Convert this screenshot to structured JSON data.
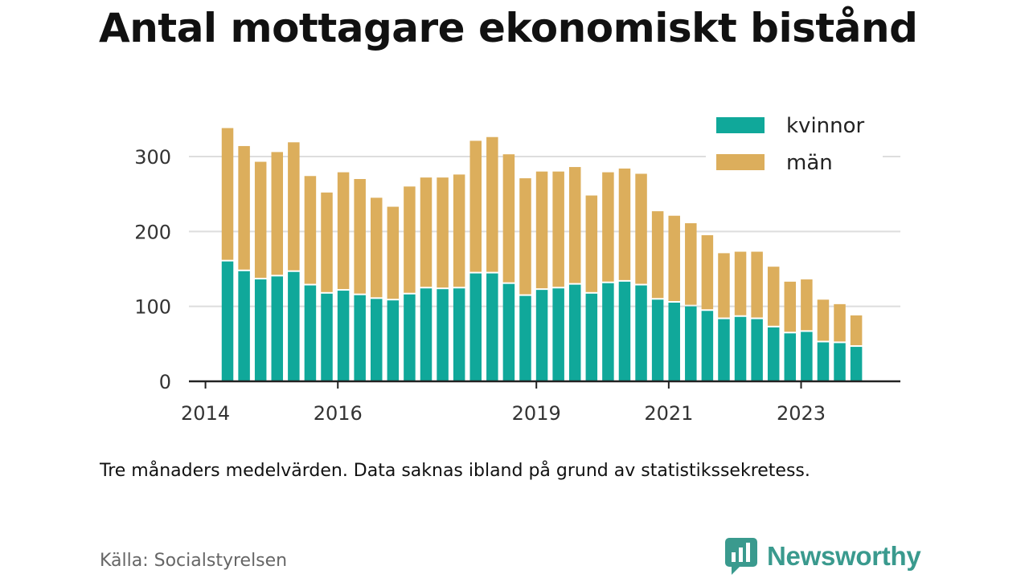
{
  "header": {
    "title": "Antal mottagare ekonomiskt bistånd"
  },
  "footer": {
    "caption": "Tre månaders medelvärden. Data saknas ibland på grund av statistikssekretess.",
    "source": "Källa: Socialstyrelsen",
    "brand": "Newsworthy"
  },
  "colors": {
    "kvinnor": "#10a89a",
    "man": "#dcae5c",
    "grid": "#dddddd",
    "axis": "#222222"
  },
  "chart_data": {
    "type": "bar",
    "stacked": true,
    "title": "Antal mottagare ekonomiskt bistånd",
    "legend_position": "top-right",
    "grid": true,
    "ylim": [
      0,
      340
    ],
    "y_ticks": [
      0,
      100,
      200,
      300
    ],
    "x_ticks": [
      {
        "label": "2014",
        "value": "2014-01"
      },
      {
        "label": "2016",
        "value": "2016-01"
      },
      {
        "label": "2019",
        "value": "2019-01"
      },
      {
        "label": "2021",
        "value": "2021-01"
      },
      {
        "label": "2023",
        "value": "2023-01"
      }
    ],
    "x_range": [
      "2013-10",
      "2024-07"
    ],
    "x": [
      "2014-05",
      "2014-08",
      "2014-11",
      "2015-02",
      "2015-05",
      "2015-08",
      "2015-11",
      "2016-02",
      "2016-05",
      "2016-08",
      "2016-11",
      "2017-02",
      "2017-05",
      "2017-08",
      "2017-11",
      "2018-02",
      "2018-05",
      "2018-08",
      "2018-11",
      "2019-02",
      "2019-05",
      "2019-08",
      "2019-11",
      "2020-02",
      "2020-05",
      "2020-08",
      "2020-11",
      "2021-02",
      "2021-05",
      "2021-08",
      "2021-11",
      "2022-02",
      "2022-05",
      "2022-08",
      "2022-11",
      "2023-02",
      "2023-05",
      "2023-08",
      "2023-11",
      "2024-02"
    ],
    "series": [
      {
        "name": "kvinnor",
        "values": [
          160,
          147,
          136,
          140,
          146,
          128,
          117,
          121,
          115,
          110,
          108,
          116,
          124,
          123,
          124,
          144,
          144,
          130,
          114,
          122,
          124,
          129,
          117,
          131,
          133,
          128,
          109,
          105,
          100,
          94,
          83,
          86,
          83,
          72,
          64,
          66,
          52,
          51,
          46,
          0
        ]
      },
      {
        "name": "män",
        "values": [
          178,
          167,
          157,
          166,
          173,
          146,
          135,
          158,
          155,
          135,
          125,
          144,
          148,
          149,
          152,
          177,
          182,
          173,
          157,
          158,
          156,
          157,
          131,
          148,
          151,
          149,
          118,
          116,
          111,
          101,
          88,
          87,
          90,
          81,
          69,
          70,
          57,
          52,
          42,
          0
        ]
      }
    ]
  }
}
